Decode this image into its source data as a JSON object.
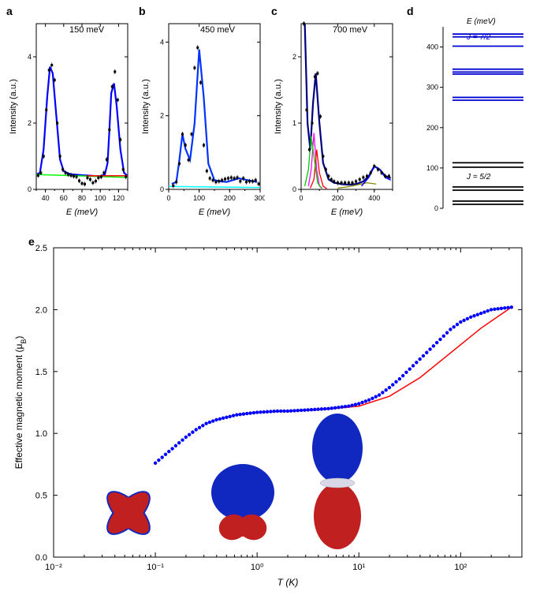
{
  "panel_a": {
    "label": "a",
    "type": "scatter+line",
    "title": "150 meV",
    "title_fontsize": 11,
    "xlabel": "E (meV)",
    "ylabel": "Intensity (a.u.)",
    "label_fontsize": 11,
    "xlim": [
      30,
      130
    ],
    "ylim": [
      0,
      5
    ],
    "xticks": [
      40,
      60,
      80,
      100,
      120
    ],
    "yticks": [
      0,
      2,
      4
    ],
    "background_color": "#ffffff",
    "curves": [
      {
        "type": "line",
        "color": "#0000ff",
        "width": 2.2,
        "x": [
          30,
          34,
          38,
          42,
          45,
          48,
          52,
          56,
          60,
          65,
          70,
          75,
          80,
          85,
          90,
          95,
          100,
          105,
          108,
          110,
          112,
          115,
          118,
          122,
          126,
          130
        ],
        "y": [
          0.45,
          0.5,
          1.2,
          2.8,
          3.7,
          3.5,
          2.2,
          0.9,
          0.55,
          0.48,
          0.45,
          0.44,
          0.43,
          0.42,
          0.41,
          0.4,
          0.4,
          0.45,
          0.8,
          1.8,
          2.9,
          3.2,
          2.5,
          1.2,
          0.5,
          0.4
        ]
      },
      {
        "type": "line",
        "color": "#00ff00",
        "width": 1.5,
        "x": [
          30,
          130
        ],
        "y": [
          0.45,
          0.36
        ]
      },
      {
        "type": "line",
        "color": "#ff0000",
        "width": 1.5,
        "x": [
          85,
          130
        ],
        "y": [
          0.41,
          0.41
        ]
      }
    ],
    "scatter": {
      "color": "#000000",
      "marker": "square",
      "size": 3,
      "errorbar": true,
      "x": [
        32,
        35,
        38,
        41,
        44,
        47,
        50,
        53,
        56,
        59,
        62,
        65,
        68,
        71,
        74,
        77,
        80,
        83,
        86,
        89,
        92,
        95,
        98,
        101,
        104,
        107,
        110,
        113,
        116,
        119,
        122,
        125,
        128
      ],
      "y": [
        0.42,
        0.5,
        1.0,
        2.4,
        3.6,
        3.75,
        3.3,
        2.0,
        1.0,
        0.6,
        0.5,
        0.45,
        0.42,
        0.4,
        0.38,
        0.26,
        0.18,
        0.16,
        0.35,
        0.3,
        0.2,
        0.25,
        0.35,
        0.38,
        0.5,
        0.9,
        1.8,
        3.1,
        3.55,
        2.7,
        1.5,
        0.6,
        0.38
      ]
    }
  },
  "panel_b": {
    "label": "b",
    "type": "scatter+line",
    "title": "450 meV",
    "title_fontsize": 11,
    "xlabel": "E (meV)",
    "ylabel": "Intensity (a.u.)",
    "xlim": [
      0,
      300
    ],
    "ylim": [
      0,
      4.5
    ],
    "xticks": [
      0,
      100,
      200,
      300
    ],
    "yticks": [
      0,
      2,
      4
    ],
    "background_color": "#ffffff",
    "curves": [
      {
        "type": "line",
        "color": "#0033ff",
        "width": 2.2,
        "x": [
          10,
          25,
          35,
          45,
          55,
          70,
          85,
          100,
          115,
          130,
          150,
          170,
          190,
          210,
          230,
          260,
          290
        ],
        "y": [
          0.15,
          0.2,
          0.8,
          1.5,
          1.1,
          0.8,
          1.8,
          3.8,
          2.5,
          0.7,
          0.25,
          0.22,
          0.2,
          0.25,
          0.3,
          0.25,
          0.2
        ]
      },
      {
        "type": "line",
        "color": "#00ffff",
        "width": 1.5,
        "x": [
          0,
          300
        ],
        "y": [
          0.08,
          0.05
        ]
      }
    ],
    "scatter": {
      "color": "#000000",
      "marker": "square",
      "size": 3,
      "errorbar": true,
      "x": [
        15,
        25,
        35,
        45,
        55,
        65,
        75,
        85,
        95,
        105,
        115,
        125,
        135,
        145,
        155,
        165,
        175,
        185,
        195,
        205,
        215,
        225,
        235,
        245,
        255,
        265,
        275,
        285,
        295
      ],
      "y": [
        0.1,
        0.2,
        0.7,
        1.5,
        1.2,
        0.8,
        1.5,
        3.3,
        3.85,
        2.9,
        1.2,
        0.5,
        0.3,
        0.25,
        0.2,
        0.22,
        0.25,
        0.28,
        0.3,
        0.32,
        0.3,
        0.32,
        0.22,
        0.3,
        0.2,
        0.22,
        0.22,
        0.25,
        0.15
      ]
    }
  },
  "panel_c": {
    "label": "c",
    "type": "scatter+line",
    "title": "700 meV",
    "title_fontsize": 11,
    "xlabel": "E (meV)",
    "ylabel": "Intensity (a.u.)",
    "xlim": [
      0,
      500
    ],
    "ylim": [
      0,
      2.5
    ],
    "xticks": [
      0,
      200,
      400
    ],
    "yticks": [
      0,
      1,
      2
    ],
    "background_color": "#ffffff",
    "curves": [
      {
        "type": "line",
        "color": "#000080",
        "width": 2.2,
        "x": [
          5,
          20,
          35,
          50,
          65,
          80,
          100,
          120,
          150,
          180,
          220,
          260,
          300,
          340,
          370,
          400,
          430,
          460,
          490
        ],
        "y": [
          3.0,
          2.5,
          1.0,
          0.6,
          1.3,
          1.75,
          1.0,
          0.4,
          0.15,
          0.1,
          0.08,
          0.07,
          0.08,
          0.12,
          0.2,
          0.35,
          0.3,
          0.2,
          0.17
        ]
      },
      {
        "type": "line",
        "color": "#ff00ff",
        "width": 1.3,
        "x": [
          40,
          55,
          70,
          85,
          100,
          115
        ],
        "y": [
          0.05,
          0.3,
          0.85,
          0.3,
          0.05,
          0.02
        ]
      },
      {
        "type": "line",
        "color": "#ff0000",
        "width": 1.3,
        "x": [
          50,
          70,
          85,
          100,
          120,
          140
        ],
        "y": [
          0.02,
          0.15,
          0.6,
          0.25,
          0.05,
          0.01
        ]
      },
      {
        "type": "line",
        "color": "#00cc00",
        "width": 1.3,
        "x": [
          20,
          40,
          55,
          70,
          90,
          110
        ],
        "y": [
          0.05,
          0.3,
          0.8,
          0.5,
          0.1,
          0.02
        ]
      },
      {
        "type": "line",
        "color": "#888800",
        "width": 1.3,
        "x": [
          200,
          260,
          310,
          360,
          410
        ],
        "y": [
          0.02,
          0.04,
          0.07,
          0.1,
          0.08
        ]
      },
      {
        "type": "line",
        "color": "#0000ff",
        "width": 1.5,
        "x": [
          330,
          370,
          400,
          430,
          460,
          490
        ],
        "y": [
          0.05,
          0.18,
          0.35,
          0.3,
          0.18,
          0.14
        ]
      }
    ],
    "scatter": {
      "color": "#000000",
      "marker": "square",
      "size": 3,
      "errorbar": true,
      "x": [
        15,
        30,
        45,
        60,
        75,
        90,
        105,
        120,
        135,
        150,
        165,
        180,
        200,
        220,
        240,
        260,
        280,
        300,
        320,
        340,
        360,
        380,
        400,
        420,
        440,
        460,
        480
      ],
      "y": [
        2.5,
        1.2,
        0.6,
        1.0,
        1.7,
        1.75,
        1.1,
        0.5,
        0.3,
        0.2,
        0.15,
        0.12,
        0.1,
        0.1,
        0.1,
        0.1,
        0.1,
        0.12,
        0.15,
        0.18,
        0.2,
        0.25,
        0.35,
        0.3,
        0.25,
        0.2,
        0.2
      ]
    }
  },
  "panel_d": {
    "label": "d",
    "type": "level-diagram",
    "ylabel": "E (meV)",
    "ylim": [
      0,
      450
    ],
    "yticks": [
      0,
      100,
      200,
      300,
      400
    ],
    "tick_fontsize": 9,
    "label_J72": "J = 7/2",
    "label_J52": "J = 5/2",
    "label_color_J72": "#0000d0",
    "label_color_J52": "#000000",
    "levels_72": {
      "color": "#0000d0",
      "width": 1.8,
      "values": [
        268,
        275,
        333,
        338,
        345,
        402,
        425,
        432
      ]
    },
    "levels_52": {
      "color": "#000000",
      "width": 1.8,
      "values": [
        10,
        18,
        45,
        53,
        102,
        113
      ]
    }
  },
  "panel_e": {
    "label": "e",
    "type": "line+scatter",
    "xlabel": "T (K)",
    "ylabel": "Effective magnetic moment (μB)",
    "label_fontsize": 12,
    "xscale": "log",
    "xlim": [
      0.01,
      400
    ],
    "ylim": [
      0,
      2.5
    ],
    "xticks": [
      0.01,
      0.1,
      1,
      10,
      100
    ],
    "xtick_labels": [
      "10⁻²",
      "10⁻¹",
      "10⁰",
      "10¹",
      "10²"
    ],
    "yticks": [
      0,
      0.5,
      1.0,
      1.5,
      2.0,
      2.5
    ],
    "background_color": "#ffffff",
    "grid": false,
    "curve": {
      "color": "#ff0000",
      "width": 1.5,
      "logx": [
        -0.2,
        0,
        0.3,
        0.6,
        1,
        1.3,
        1.6,
        1.9,
        2.2,
        2.5
      ],
      "y": [
        1.15,
        1.17,
        1.18,
        1.19,
        1.22,
        1.3,
        1.45,
        1.65,
        1.85,
        2.02
      ]
    },
    "scatter": {
      "color": "#0000ff",
      "marker": "circle",
      "size": 2.2,
      "logx": [
        -1.0,
        -0.9,
        -0.8,
        -0.7,
        -0.6,
        -0.5,
        -0.4,
        -0.3,
        -0.2,
        -0.1,
        0,
        0.1,
        0.2,
        0.3,
        0.4,
        0.5,
        0.6,
        0.7,
        0.8,
        0.9,
        1.0,
        1.1,
        1.2,
        1.3,
        1.4,
        1.5,
        1.6,
        1.7,
        1.8,
        1.9,
        2.0,
        2.1,
        2.2,
        2.3,
        2.4,
        2.5
      ],
      "y": [
        0.76,
        0.83,
        0.9,
        0.97,
        1.03,
        1.08,
        1.11,
        1.13,
        1.15,
        1.16,
        1.17,
        1.175,
        1.18,
        1.18,
        1.185,
        1.19,
        1.195,
        1.2,
        1.21,
        1.22,
        1.24,
        1.27,
        1.31,
        1.37,
        1.44,
        1.52,
        1.6,
        1.68,
        1.76,
        1.84,
        1.9,
        1.94,
        1.97,
        2.0,
        2.01,
        2.02
      ]
    },
    "orbital_colors": {
      "red": "#c02020",
      "blue": "#1028c0",
      "highlight": "#f0f0ff"
    }
  }
}
